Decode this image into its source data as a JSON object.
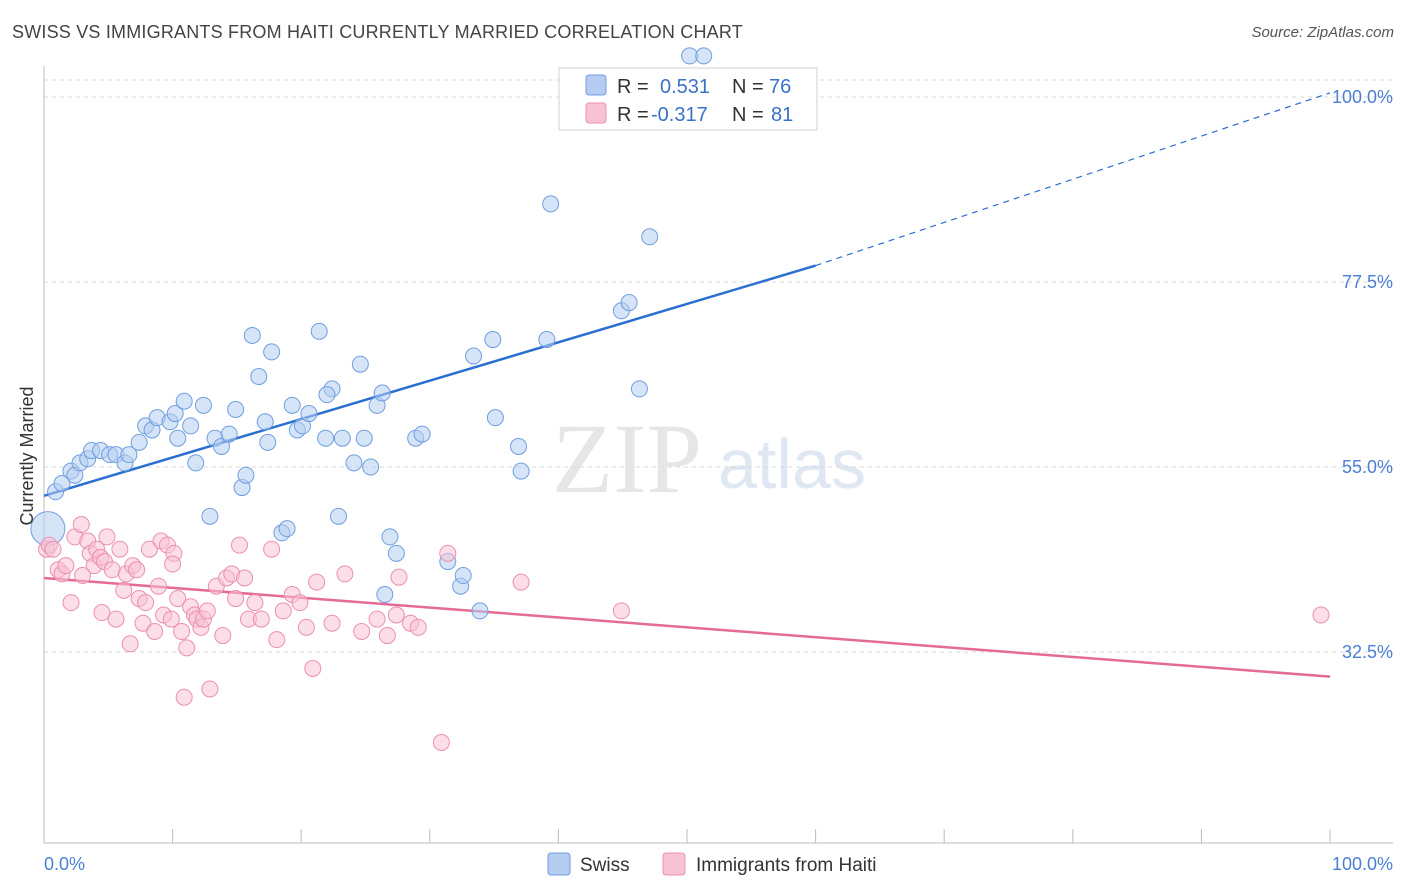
{
  "header": {
    "title": "SWISS VS IMMIGRANTS FROM HAITI CURRENTLY MARRIED CORRELATION CHART",
    "source": "Source: ZipAtlas.com"
  },
  "watermark": {
    "zip": "ZIP",
    "atlas": "atlas"
  },
  "legend": {
    "r_label": "R =",
    "n_label": "N =",
    "swiss_r": "0.531",
    "swiss_n": "76",
    "haiti_r": "-0.317",
    "haiti_n": "81"
  },
  "colors": {
    "swiss_fill": "#b5cdf0",
    "swiss_stroke": "#6f9ee0",
    "swiss_line": "#2a6fd0",
    "haiti_fill": "#f7c3d3",
    "haiti_stroke": "#ec8fb0",
    "haiti_line": "#e46a98",
    "grid": "#d9d9d9",
    "tick_text": "#4a7fd4"
  },
  "chart_data": {
    "type": "scatter",
    "title": "SWISS VS IMMIGRANTS FROM HAITI CURRENTLY MARRIED CORRELATION CHART",
    "xlabel": "",
    "ylabel": "Currently Married",
    "xlim": [
      0,
      100
    ],
    "ylim": [
      10,
      102
    ],
    "x_tick_labels": [
      "0.0%",
      "100.0%"
    ],
    "y_ticks": [
      32.5,
      55.0,
      77.5,
      100.0
    ],
    "y_tick_labels": [
      "32.5%",
      "55.0%",
      "77.5%",
      "100.0%"
    ],
    "legend_labels": [
      "Swiss",
      "Immigrants from Haiti"
    ],
    "series": [
      {
        "name": "Swiss",
        "r": 0.531,
        "n": 76,
        "trend": {
          "x0": 0,
          "y0": 51.5,
          "x1": 60,
          "y1": 79.5,
          "dash_x1": 100,
          "dash_y1": 100.5
        },
        "points": [
          [
            0.3,
            47.5
          ],
          [
            0.9,
            52
          ],
          [
            1.4,
            53
          ],
          [
            2.1,
            54.5
          ],
          [
            2.4,
            54
          ],
          [
            2.8,
            55.5
          ],
          [
            3.4,
            56
          ],
          [
            3.7,
            57
          ],
          [
            4.4,
            57
          ],
          [
            5.1,
            56.5
          ],
          [
            5.6,
            56.5
          ],
          [
            6.3,
            55.5
          ],
          [
            6.6,
            56.5
          ],
          [
            7.4,
            58
          ],
          [
            7.9,
            60
          ],
          [
            8.4,
            59.5
          ],
          [
            8.8,
            61
          ],
          [
            9.8,
            60.5
          ],
          [
            10.2,
            61.5
          ],
          [
            10.4,
            58.5
          ],
          [
            10.9,
            63
          ],
          [
            11.4,
            60
          ],
          [
            11.8,
            55.5
          ],
          [
            12.4,
            62.5
          ],
          [
            12.9,
            49
          ],
          [
            13.3,
            58.5
          ],
          [
            13.8,
            57.5
          ],
          [
            14.4,
            59
          ],
          [
            14.9,
            62
          ],
          [
            15.4,
            52.5
          ],
          [
            15.7,
            54
          ],
          [
            16.2,
            71
          ],
          [
            16.7,
            66
          ],
          [
            17.2,
            60.5
          ],
          [
            17.7,
            69
          ],
          [
            18.5,
            47
          ],
          [
            18.9,
            47.5
          ],
          [
            19.3,
            62.5
          ],
          [
            19.7,
            59.5
          ],
          [
            20.1,
            60
          ],
          [
            20.6,
            61.5
          ],
          [
            21.4,
            71.5
          ],
          [
            21.9,
            58.5
          ],
          [
            22.4,
            64.5
          ],
          [
            22.9,
            49
          ],
          [
            23.2,
            58.5
          ],
          [
            24.1,
            55.5
          ],
          [
            24.6,
            67.5
          ],
          [
            24.9,
            58.5
          ],
          [
            25.4,
            55
          ],
          [
            25.9,
            62.5
          ],
          [
            26.3,
            64
          ],
          [
            26.9,
            46.5
          ],
          [
            27.4,
            44.5
          ],
          [
            28.9,
            58.5
          ],
          [
            29.4,
            59
          ],
          [
            31.4,
            43.5
          ],
          [
            32.4,
            40.5
          ],
          [
            33.4,
            68.5
          ],
          [
            33.9,
            37.5
          ],
          [
            34.9,
            70.5
          ],
          [
            35.1,
            61
          ],
          [
            36.9,
            57.5
          ],
          [
            37.1,
            54.5
          ],
          [
            39.1,
            70.5
          ],
          [
            39.4,
            87
          ],
          [
            44.9,
            74
          ],
          [
            45.5,
            75
          ],
          [
            46.3,
            64.5
          ],
          [
            47.1,
            83
          ],
          [
            50.2,
            105
          ],
          [
            51.3,
            105
          ],
          [
            26.5,
            39.5
          ],
          [
            22.0,
            63.8
          ],
          [
            32.6,
            41.8
          ],
          [
            17.4,
            58.0
          ]
        ]
      },
      {
        "name": "Immigrants from Haiti",
        "r": -0.317,
        "n": 81,
        "trend": {
          "x0": 0,
          "y0": 41.5,
          "x1": 100,
          "y1": 29.5
        },
        "points": [
          [
            0.2,
            45
          ],
          [
            0.4,
            45.5
          ],
          [
            0.7,
            45
          ],
          [
            1.1,
            42.5
          ],
          [
            1.4,
            42
          ],
          [
            1.7,
            43
          ],
          [
            2.1,
            38.5
          ],
          [
            2.4,
            46.5
          ],
          [
            2.9,
            48
          ],
          [
            3.4,
            46
          ],
          [
            3.6,
            44.5
          ],
          [
            3.9,
            43
          ],
          [
            4.1,
            45
          ],
          [
            4.4,
            44
          ],
          [
            4.7,
            43.5
          ],
          [
            4.9,
            46.5
          ],
          [
            5.3,
            42.5
          ],
          [
            5.6,
            36.5
          ],
          [
            5.9,
            45
          ],
          [
            6.2,
            40
          ],
          [
            6.4,
            42
          ],
          [
            6.7,
            33.5
          ],
          [
            6.9,
            43
          ],
          [
            7.2,
            42.5
          ],
          [
            7.4,
            39
          ],
          [
            7.7,
            36
          ],
          [
            7.9,
            38.5
          ],
          [
            8.2,
            45
          ],
          [
            8.6,
            35
          ],
          [
            8.9,
            40.5
          ],
          [
            9.1,
            46
          ],
          [
            9.3,
            37
          ],
          [
            9.6,
            45.5
          ],
          [
            9.9,
            36.5
          ],
          [
            10.1,
            44.5
          ],
          [
            10.4,
            39
          ],
          [
            10.7,
            35
          ],
          [
            10.9,
            27
          ],
          [
            11.1,
            33
          ],
          [
            11.4,
            38
          ],
          [
            11.7,
            37
          ],
          [
            11.9,
            36.5
          ],
          [
            12.2,
            35.5
          ],
          [
            12.4,
            36.5
          ],
          [
            12.7,
            37.5
          ],
          [
            12.9,
            28
          ],
          [
            13.4,
            40.5
          ],
          [
            13.9,
            34.5
          ],
          [
            14.2,
            41.5
          ],
          [
            14.6,
            42
          ],
          [
            14.9,
            39
          ],
          [
            15.2,
            45.5
          ],
          [
            15.6,
            41.5
          ],
          [
            15.9,
            36.5
          ],
          [
            16.4,
            38.5
          ],
          [
            16.9,
            36.5
          ],
          [
            17.7,
            45
          ],
          [
            18.1,
            34
          ],
          [
            18.6,
            37.5
          ],
          [
            19.3,
            39.5
          ],
          [
            19.9,
            38.5
          ],
          [
            20.4,
            35.5
          ],
          [
            20.9,
            30.5
          ],
          [
            21.2,
            41
          ],
          [
            22.4,
            36
          ],
          [
            23.4,
            42
          ],
          [
            24.7,
            35
          ],
          [
            25.9,
            36.5
          ],
          [
            26.7,
            34.5
          ],
          [
            27.4,
            37
          ],
          [
            28.5,
            36
          ],
          [
            29.1,
            35.5
          ],
          [
            30.9,
            21.5
          ],
          [
            31.4,
            44.5
          ],
          [
            37.1,
            41
          ],
          [
            44.9,
            37.5
          ],
          [
            99.3,
            37
          ],
          [
            3.0,
            41.8
          ],
          [
            4.5,
            37.3
          ],
          [
            10.0,
            43.2
          ],
          [
            27.6,
            41.6
          ]
        ]
      }
    ]
  }
}
